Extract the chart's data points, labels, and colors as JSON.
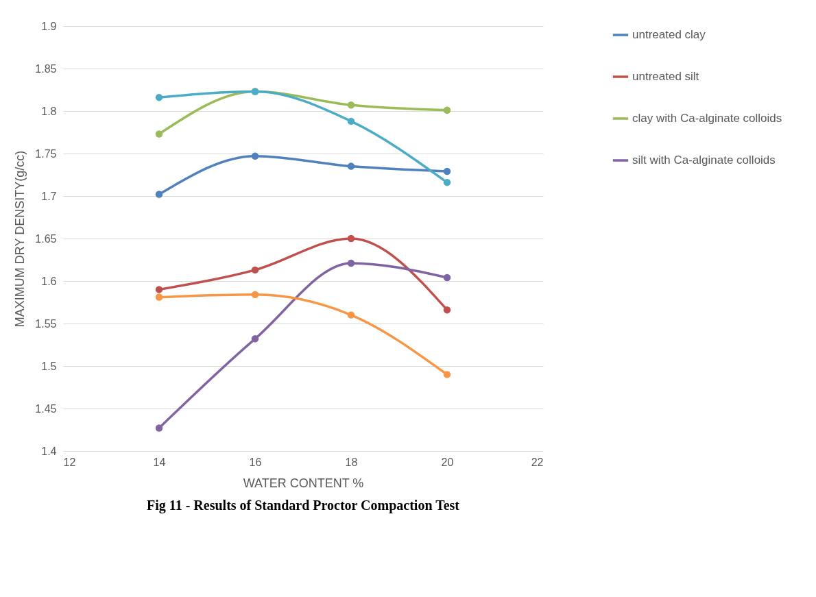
{
  "chart_data": {
    "type": "line",
    "xlabel": "WATER CONTENT %",
    "ylabel": "MAXIMUM DRY DENSITY(g/cc)",
    "x": [
      14,
      16,
      18,
      20
    ],
    "series": [
      {
        "name": "untreated clay",
        "color": "#4f81bd",
        "values": [
          1.702,
          1.747,
          1.735,
          1.729
        ]
      },
      {
        "name": "untreated silt",
        "color": "#c0504d",
        "values": [
          1.59,
          1.613,
          1.65,
          1.566
        ]
      },
      {
        "name": "clay with Ca-alginate colloids",
        "color": "#9bbb59",
        "values": [
          1.773,
          1.823,
          1.807,
          1.801
        ]
      },
      {
        "name": "silt with Ca-alginate colloids",
        "color": "#8064a2",
        "values": [
          1.427,
          1.532,
          1.621,
          1.604
        ]
      },
      {
        "color": "#4bacc6",
        "values": [
          1.816,
          1.823,
          1.788,
          1.716
        ]
      },
      {
        "color": "#f79646",
        "values": [
          1.581,
          1.584,
          1.56,
          1.49
        ]
      }
    ],
    "xlim": [
      12,
      22
    ],
    "xticks": [
      12,
      14,
      16,
      18,
      20,
      22
    ],
    "ylim": [
      1.4,
      1.9
    ],
    "yticks": [
      1.4,
      1.45,
      1.5,
      1.55,
      1.6,
      1.65,
      1.7,
      1.75,
      1.8,
      1.85,
      1.9
    ],
    "grid": "y",
    "legend": "right",
    "marker": "circle",
    "line_style": "solid",
    "annotations": [
      "Fig 11 -  Results of Standard Proctor Compaction Test"
    ]
  }
}
